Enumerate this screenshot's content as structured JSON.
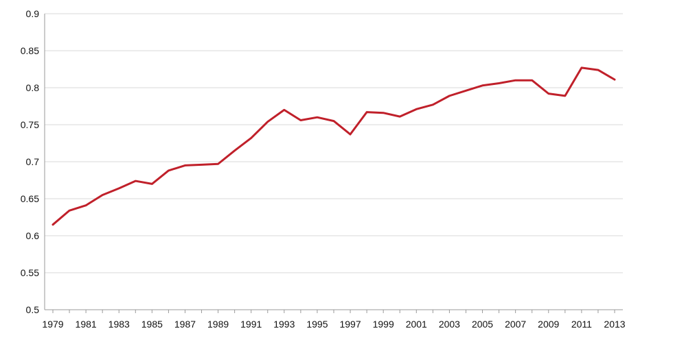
{
  "chart_data": {
    "type": "line",
    "title": "",
    "xlabel": "",
    "ylabel": "",
    "x": [
      1979,
      1980,
      1981,
      1982,
      1983,
      1984,
      1985,
      1986,
      1987,
      1988,
      1989,
      1990,
      1991,
      1992,
      1993,
      1994,
      1995,
      1996,
      1997,
      1998,
      1999,
      2000,
      2001,
      2002,
      2003,
      2004,
      2005,
      2006,
      2007,
      2008,
      2009,
      2010,
      2011,
      2012,
      2013
    ],
    "series": [
      {
        "values": [
          0.615,
          0.634,
          0.641,
          0.655,
          0.664,
          0.674,
          0.67,
          0.688,
          0.695,
          0.696,
          0.697,
          0.715,
          0.732,
          0.754,
          0.77,
          0.756,
          0.76,
          0.755,
          0.737,
          0.767,
          0.766,
          0.761,
          0.771,
          0.777,
          0.789,
          0.796,
          0.803,
          0.806,
          0.81,
          0.81,
          0.792,
          0.789,
          0.827,
          0.824,
          0.811
        ]
      }
    ],
    "ylim": [
      0.5,
      0.9
    ],
    "xlim": [
      1979,
      2013
    ],
    "y_ticks": [
      "0.5",
      "0.55",
      "0.6",
      "0.65",
      "0.7",
      "0.75",
      "0.8",
      "0.85",
      "0.9"
    ],
    "x_ticks": [
      "1979",
      "1981",
      "1983",
      "1985",
      "1987",
      "1989",
      "1991",
      "1993",
      "1995",
      "1997",
      "1999",
      "2001",
      "2003",
      "2005",
      "2007",
      "2009",
      "2011",
      "2013"
    ],
    "grid": true,
    "legend": "none",
    "colors": {
      "line": "#c0202a",
      "grid": "#d9d9d9",
      "axis": "#9a9a9a"
    }
  }
}
